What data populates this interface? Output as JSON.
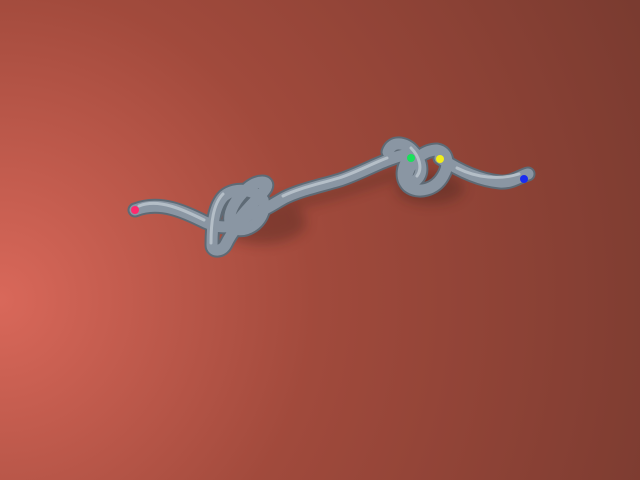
{
  "scene": {
    "background": {
      "center_color": "#d9685a",
      "mid_color": "#a14a3c",
      "edge_color": "#7a3b30"
    },
    "rope": {
      "color": "#8a96a3",
      "highlight_color": "#c3ccd4",
      "shadow_color": "#5e6a75"
    },
    "markers": [
      {
        "name": "pink-marker",
        "color": "#ff2a6d"
      },
      {
        "name": "green-marker",
        "color": "#19e05a"
      },
      {
        "name": "yellow-marker",
        "color": "#f2ef1b"
      },
      {
        "name": "blue-marker",
        "color": "#1a2cf0"
      }
    ]
  }
}
